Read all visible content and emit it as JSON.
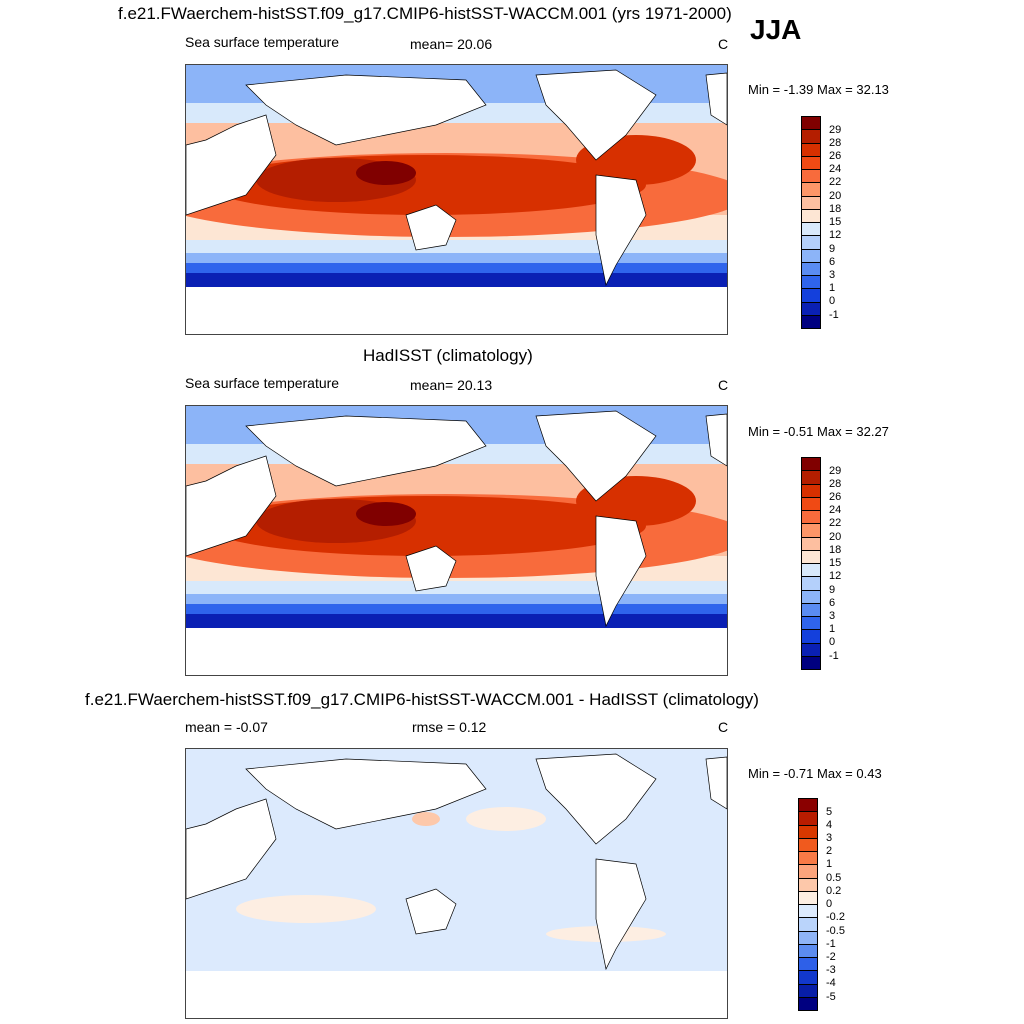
{
  "header": {
    "season": "JJA"
  },
  "chart_data": [
    {
      "type": "heatmap",
      "title": "f.e21.FWaerchem-histSST.f09_g17.CMIP6-histSST-WACCM.001 (yrs 1971-2000)",
      "left_label": "Sea surface temperature",
      "center_label": "mean=  20.06",
      "right_label": "C",
      "minmax_label": "Min =  -1.39 Max =  32.13",
      "min": -1.39,
      "max": 32.13,
      "mean": 20.06,
      "units": "C",
      "colorbar": {
        "levels": [
          "29",
          "28",
          "26",
          "24",
          "22",
          "20",
          "18",
          "15",
          "12",
          "9",
          "6",
          "3",
          "1",
          "0",
          "-1"
        ],
        "colors": [
          "#800000",
          "#b41e00",
          "#d73000",
          "#f04a14",
          "#f86b3c",
          "#fd9668",
          "#fdbfa0",
          "#fde6d4",
          "#d8e9fb",
          "#b4d0fb",
          "#8cb4f8",
          "#5a8cf2",
          "#2f64ec",
          "#1440dc",
          "#0a20b4",
          "#000080"
        ]
      }
    },
    {
      "type": "heatmap",
      "title": "HadISST (climatology)",
      "left_label": "Sea surface temperature",
      "center_label": "mean=  20.13",
      "right_label": "C",
      "minmax_label": "Min =  -0.51 Max =  32.27",
      "min": -0.51,
      "max": 32.27,
      "mean": 20.13,
      "units": "C",
      "colorbar": {
        "levels": [
          "29",
          "28",
          "26",
          "24",
          "22",
          "20",
          "18",
          "15",
          "12",
          "9",
          "6",
          "3",
          "1",
          "0",
          "-1"
        ],
        "colors": [
          "#800000",
          "#b41e00",
          "#d73000",
          "#f04a14",
          "#f86b3c",
          "#fd9668",
          "#fdbfa0",
          "#fde6d4",
          "#d8e9fb",
          "#b4d0fb",
          "#8cb4f8",
          "#5a8cf2",
          "#2f64ec",
          "#1440dc",
          "#0a20b4",
          "#000080"
        ]
      }
    },
    {
      "type": "heatmap",
      "title": "f.e21.FWaerchem-histSST.f09_g17.CMIP6-histSST-WACCM.001 - HadISST (climatology)",
      "left_label": "mean =  -0.07",
      "center_label": "rmse =   0.12",
      "right_label": "C",
      "minmax_label": "Min =  -0.71 Max =   0.43",
      "min": -0.71,
      "max": 0.43,
      "mean": -0.07,
      "rmse": 0.12,
      "units": "C",
      "colorbar": {
        "levels": [
          "5",
          "4",
          "3",
          "2",
          "1",
          "0.5",
          "0.2",
          "0",
          "-0.2",
          "-0.5",
          "-1",
          "-2",
          "-3",
          "-4",
          "-5"
        ],
        "colors": [
          "#8a0000",
          "#b81c00",
          "#d83800",
          "#f05a1e",
          "#f87a46",
          "#fca47c",
          "#fdc8aa",
          "#fdeee2",
          "#dceafd",
          "#bad4fb",
          "#8fb4f6",
          "#5c8cf0",
          "#2e60e8",
          "#1238cc",
          "#081ea8",
          "#000080"
        ]
      }
    }
  ]
}
